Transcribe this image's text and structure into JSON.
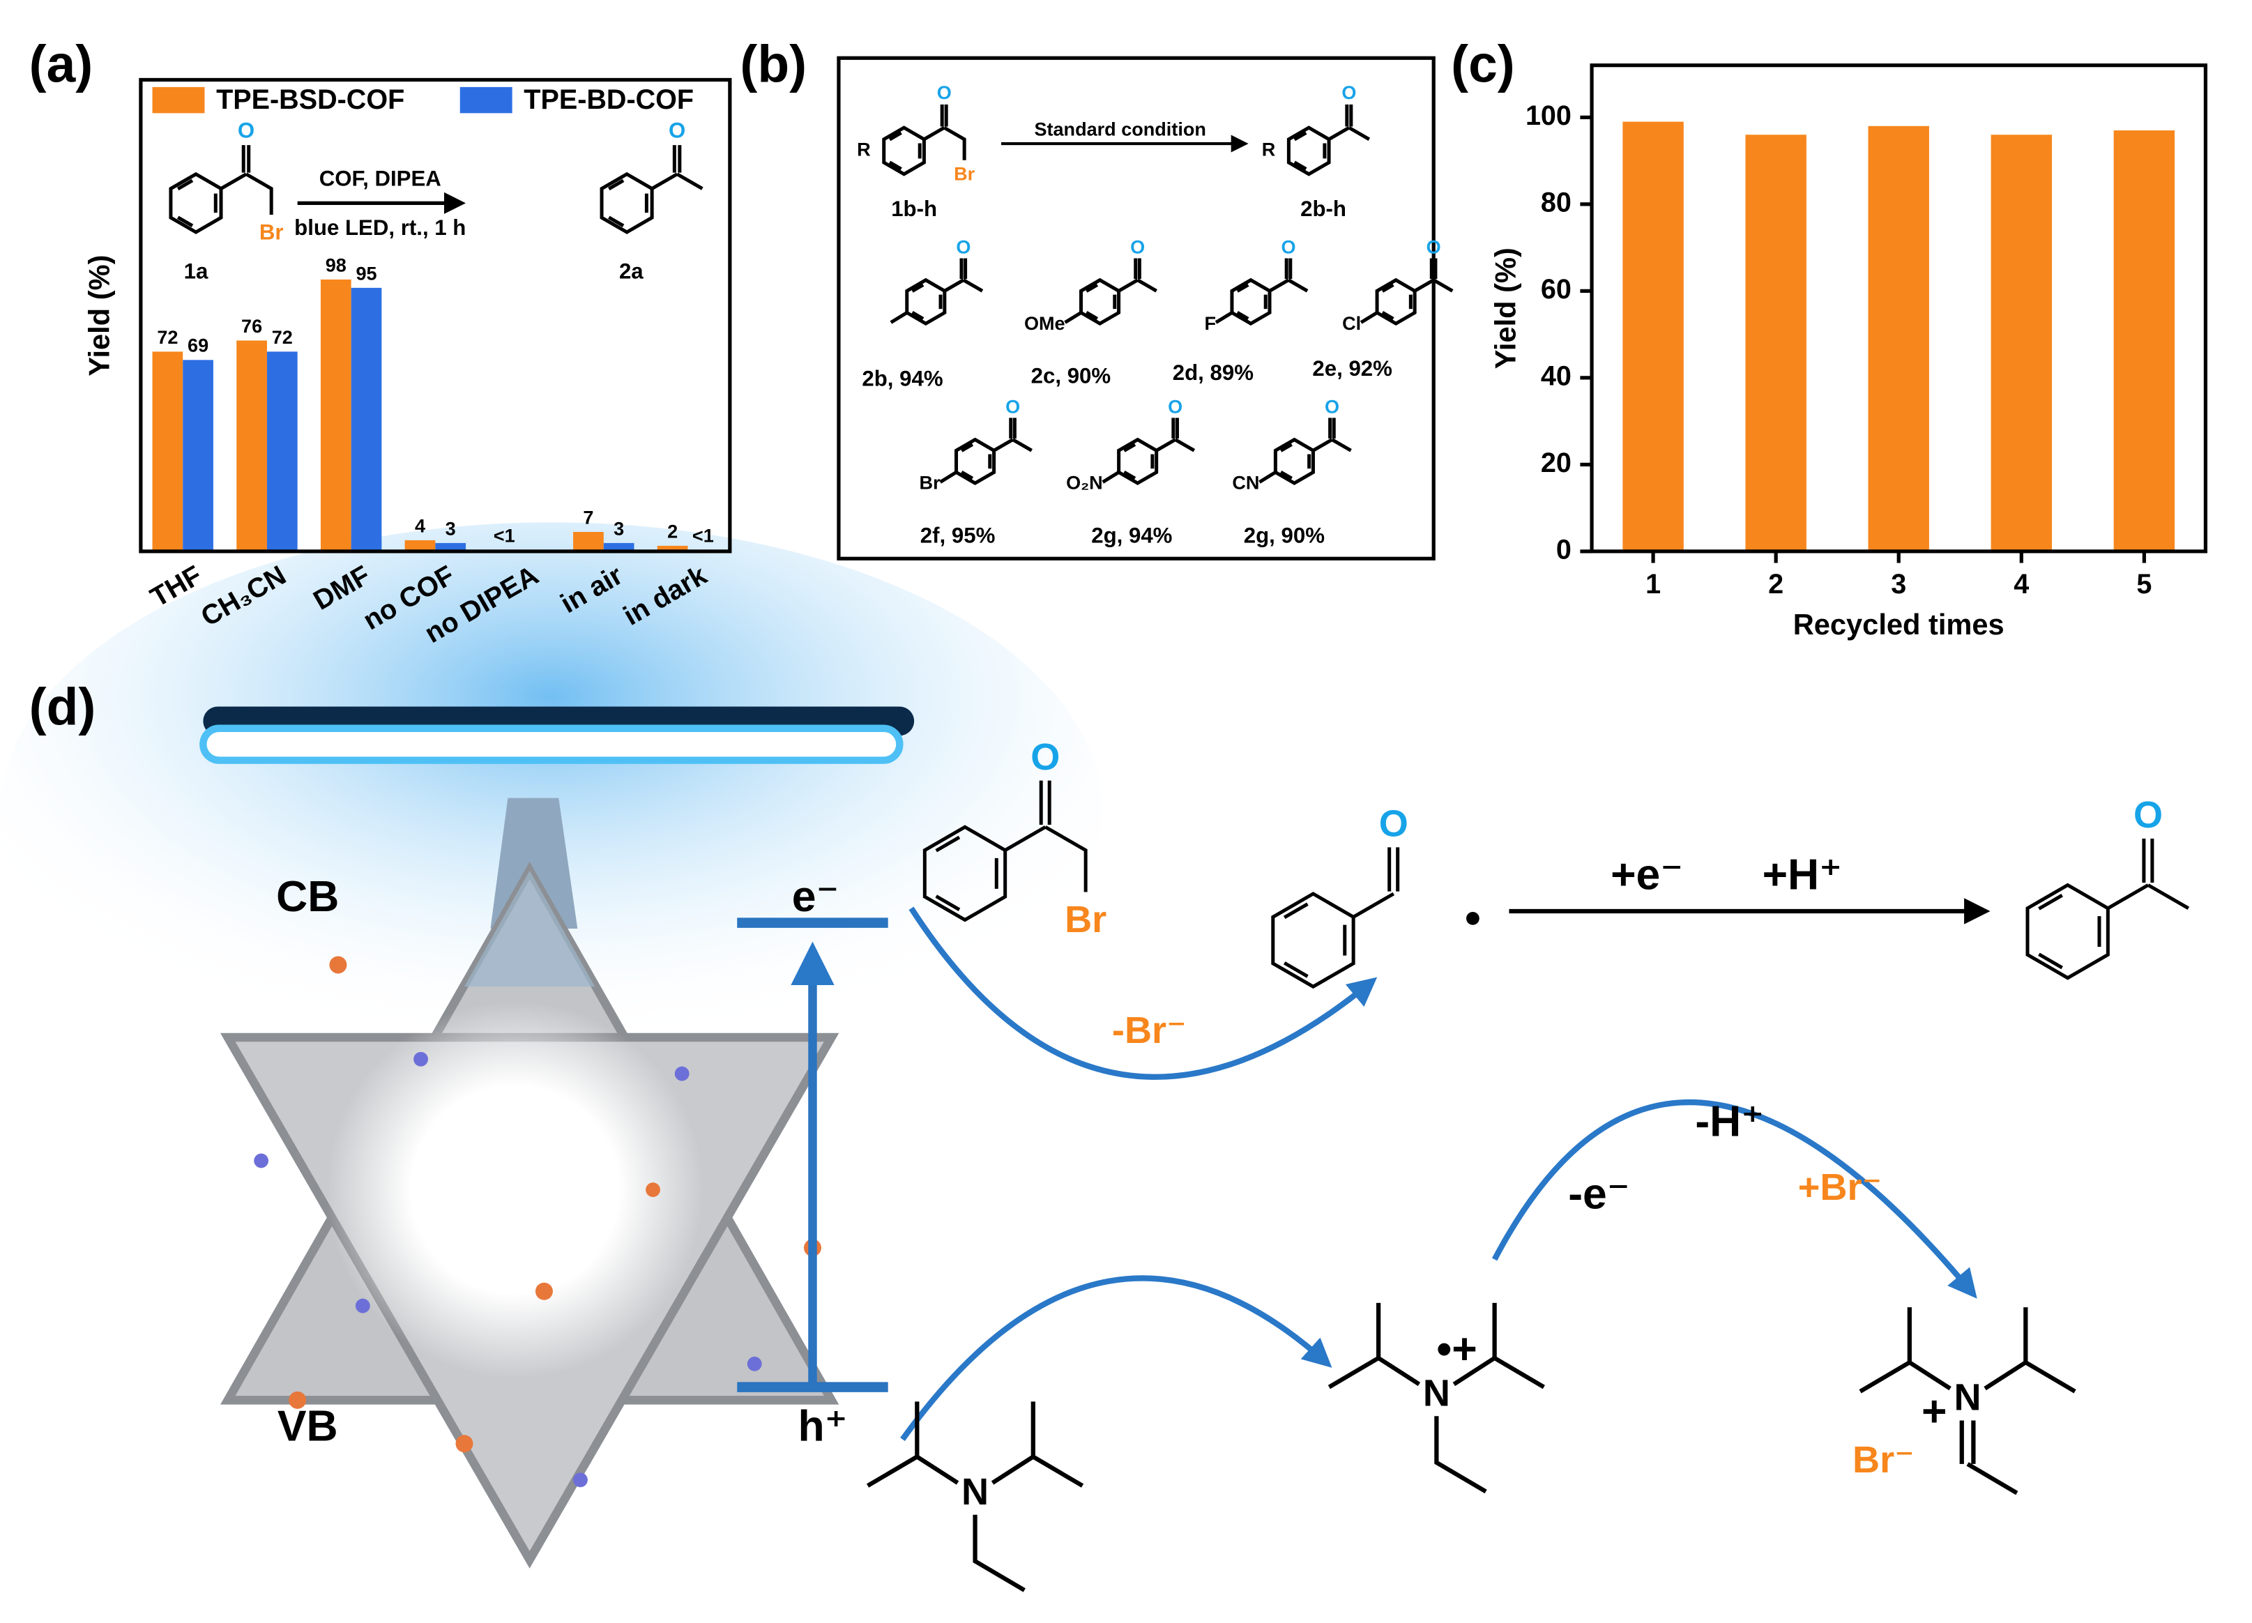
{
  "chart_data": [
    {
      "type": "bar",
      "panel_label": "(a)",
      "ylabel": "Yield (%)",
      "categories": [
        "THF",
        "CH₃CN",
        "DMF",
        "no COF",
        "no DIPEA",
        "in air",
        "in dark"
      ],
      "series": [
        {
          "name": "TPE-BSD-COF",
          "color": "#f7861c",
          "values": [
            72,
            76,
            98,
            4,
            0.5,
            7,
            2
          ],
          "value_labels": [
            "72",
            "76",
            "98",
            "4",
            "<1",
            "7",
            "2"
          ]
        },
        {
          "name": "TPE-BD-COF",
          "color": "#2d6fe3",
          "values": [
            69,
            72,
            95,
            3,
            null,
            3,
            0.5
          ],
          "value_labels": [
            "69",
            "72",
            "95",
            "3",
            null,
            "3",
            "<1"
          ]
        }
      ],
      "ylim": [
        0,
        170
      ],
      "scheme": {
        "reagents": "COF,  DIPEA",
        "conditions": "blue LED, rt., 1 h",
        "reactant": "1a",
        "product": "2a",
        "oxygen": "O",
        "bromine": "Br"
      }
    },
    {
      "type": "bar",
      "panel_label": "(c)",
      "xlabel": "Recycled times",
      "ylabel": "Yield (%)",
      "categories": [
        "1",
        "2",
        "3",
        "4",
        "5"
      ],
      "values": [
        99,
        96,
        98,
        96,
        97
      ],
      "color": "#f7861c",
      "ylim": [
        0,
        112
      ],
      "yticks": [
        0,
        20,
        40,
        60,
        80,
        100
      ]
    }
  ],
  "scheme_b": {
    "panel_label": "(b)",
    "condition": "Standard condition",
    "reactant": "1b-h",
    "product": "2b-h",
    "R": "R",
    "oxygen": "O",
    "bromine": "Br",
    "products": [
      {
        "label": "2b, 94%"
      },
      {
        "label": "2c, 90%",
        "group": "OMe"
      },
      {
        "label": "2d, 89%",
        "group": "F"
      },
      {
        "label": "2e, 92%",
        "group": "Cl"
      },
      {
        "label": "2f, 95%",
        "group": "Br"
      },
      {
        "label": "2g, 94%",
        "group": "O₂N"
      },
      {
        "label": "2g, 90%",
        "group": "CN"
      }
    ]
  },
  "mechanism_d": {
    "panel_label": "(d)",
    "cb": "CB",
    "vb": "VB",
    "electron": "e⁻",
    "hole": "h⁺",
    "loss_br": "-Br⁻",
    "gain_e": "+e⁻",
    "gain_h": "+H⁺",
    "loss_h": "-H⁺",
    "loss_e": "-e⁻",
    "gain_br": "+Br⁻",
    "oxygen": "O",
    "bromine": "Br",
    "nitrogen": "N",
    "radical_cation": "•+",
    "plus": "+",
    "bromide": "Br⁻"
  }
}
